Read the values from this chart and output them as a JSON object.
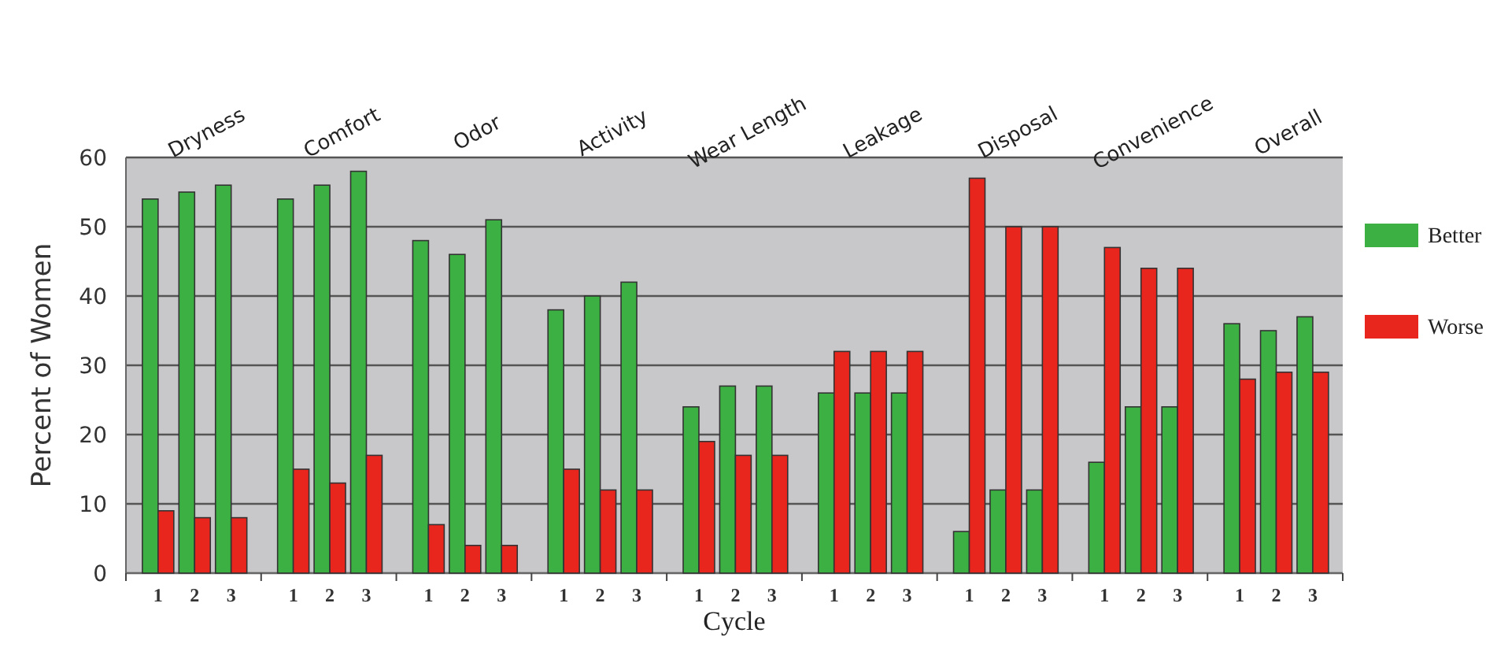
{
  "chart_data": {
    "type": "bar",
    "xlabel": "Cycle",
    "ylabel": "Percent of Women",
    "categories": [
      "1",
      "2",
      "3",
      "1",
      "2",
      "3",
      "1",
      "2",
      "3",
      "1",
      "2",
      "3",
      "1",
      "2",
      "3",
      "1",
      "2",
      "3",
      "1",
      "2",
      "3",
      "1",
      "2",
      "3",
      "1",
      "2",
      "3"
    ],
    "series": [
      {
        "name": "Better",
        "color": "#3cb043",
        "values": [
          54,
          55,
          56,
          54,
          56,
          58,
          48,
          46,
          51,
          38,
          40,
          42,
          24,
          27,
          27,
          26,
          26,
          26,
          6,
          12,
          12,
          16,
          24,
          24,
          36,
          35,
          37
        ]
      },
      {
        "name": "Worse",
        "color": "#e8261e",
        "values": [
          9,
          8,
          8,
          15,
          13,
          17,
          7,
          4,
          4,
          15,
          12,
          12,
          19,
          17,
          17,
          32,
          32,
          32,
          57,
          50,
          50,
          47,
          44,
          44,
          28,
          29,
          29
        ]
      }
    ],
    "annotations": [
      "Dryness",
      "Comfort",
      "Odor",
      "Activity",
      "Wear Length",
      "Leakage",
      "Disposal",
      "Convenience",
      "Overall"
    ],
    "ylim": [
      0,
      60
    ],
    "yticks": [
      0,
      10,
      20,
      30,
      40,
      50,
      60
    ],
    "grid": "y",
    "legend": "right"
  }
}
